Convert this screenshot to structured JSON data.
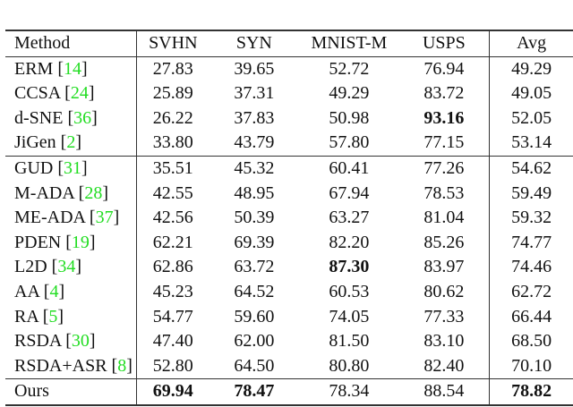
{
  "table": {
    "headers": [
      "Method",
      "SVHN",
      "SYN",
      "MNIST-M",
      "USPS",
      "Avg"
    ],
    "link_color": "#22dd22",
    "rows": [
      {
        "method": "ERM",
        "ref": "14",
        "values": [
          "27.83",
          "39.65",
          "52.72",
          "76.94",
          "49.29"
        ],
        "bold": []
      },
      {
        "method": "CCSA",
        "ref": "24",
        "values": [
          "25.89",
          "37.31",
          "49.29",
          "83.72",
          "49.05"
        ],
        "bold": []
      },
      {
        "method": "d-SNE",
        "ref": "36",
        "values": [
          "26.22",
          "37.83",
          "50.98",
          "93.16",
          "52.05"
        ],
        "bold": [
          3
        ]
      },
      {
        "method": "JiGen",
        "ref": "2",
        "values": [
          "33.80",
          "43.79",
          "57.80",
          "77.15",
          "53.14"
        ],
        "bold": []
      },
      {
        "method": "GUD",
        "ref": "31",
        "values": [
          "35.51",
          "45.32",
          "60.41",
          "77.26",
          "54.62"
        ],
        "bold": [],
        "sep": true
      },
      {
        "method": "M-ADA",
        "ref": "28",
        "values": [
          "42.55",
          "48.95",
          "67.94",
          "78.53",
          "59.49"
        ],
        "bold": []
      },
      {
        "method": "ME-ADA",
        "ref": "37",
        "values": [
          "42.56",
          "50.39",
          "63.27",
          "81.04",
          "59.32"
        ],
        "bold": []
      },
      {
        "method": "PDEN",
        "ref": "19",
        "values": [
          "62.21",
          "69.39",
          "82.20",
          "85.26",
          "74.77"
        ],
        "bold": []
      },
      {
        "method": "L2D",
        "ref": "34",
        "values": [
          "62.86",
          "63.72",
          "87.30",
          "83.97",
          "74.46"
        ],
        "bold": [
          2
        ]
      },
      {
        "method": "AA",
        "ref": "4",
        "values": [
          "45.23",
          "64.52",
          "60.53",
          "80.62",
          "62.72"
        ],
        "bold": []
      },
      {
        "method": "RA",
        "ref": "5",
        "values": [
          "54.77",
          "59.60",
          "74.05",
          "77.33",
          "66.44"
        ],
        "bold": []
      },
      {
        "method": "RSDA",
        "ref": "30",
        "values": [
          "47.40",
          "62.00",
          "81.50",
          "83.10",
          "68.50"
        ],
        "bold": []
      },
      {
        "method": "RSDA+ASR",
        "ref": "8",
        "values": [
          "52.80",
          "64.50",
          "80.80",
          "82.40",
          "70.10"
        ],
        "bold": []
      },
      {
        "method": "Ours",
        "ref": null,
        "values": [
          "69.94",
          "78.47",
          "78.34",
          "88.54",
          "78.82"
        ],
        "bold": [
          0,
          1,
          4
        ],
        "sep": true
      }
    ]
  }
}
